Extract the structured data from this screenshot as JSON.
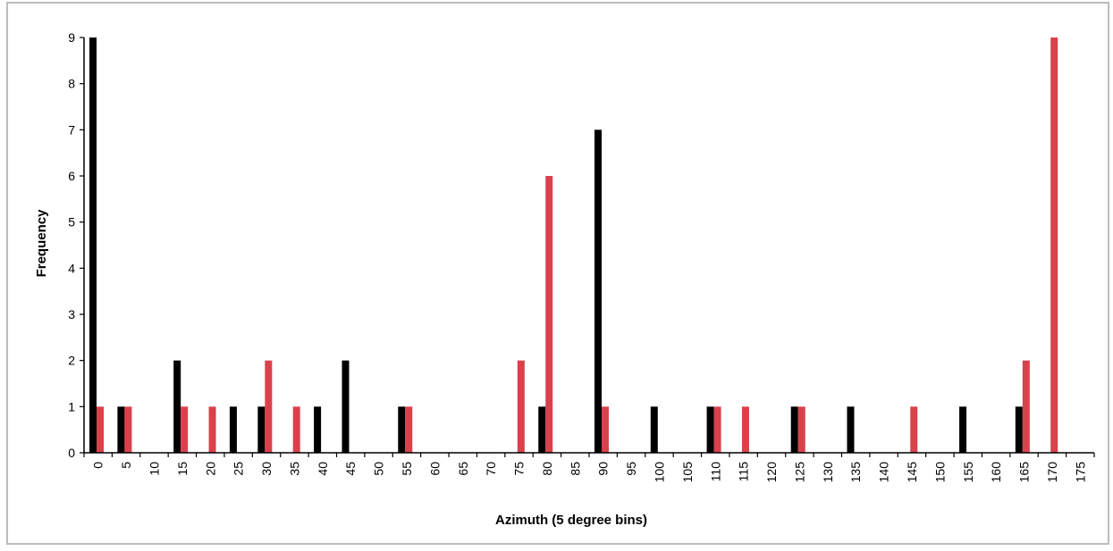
{
  "chart_data": {
    "type": "bar",
    "title": "",
    "xlabel": "Azimuth (5 degree bins)",
    "ylabel": "Frequency",
    "ylim": [
      0,
      9
    ],
    "yticks": [
      0,
      1,
      2,
      3,
      4,
      5,
      6,
      7,
      8,
      9
    ],
    "grid": false,
    "legend": "none",
    "categories": [
      "0",
      "5",
      "10",
      "15",
      "20",
      "25",
      "30",
      "35",
      "40",
      "45",
      "50",
      "55",
      "60",
      "65",
      "70",
      "75",
      "80",
      "85",
      "90",
      "95",
      "100",
      "105",
      "110",
      "115",
      "120",
      "125",
      "130",
      "135",
      "140",
      "145",
      "150",
      "155",
      "160",
      "165",
      "170",
      "175"
    ],
    "series": [
      {
        "color": "#000000",
        "values": [
          9,
          1,
          0,
          2,
          0,
          1,
          1,
          0,
          1,
          2,
          0,
          1,
          0,
          0,
          0,
          0,
          1,
          0,
          7,
          0,
          1,
          0,
          1,
          0,
          0,
          1,
          0,
          1,
          0,
          0,
          0,
          1,
          0,
          1,
          0,
          0
        ]
      },
      {
        "color": "#d9414b",
        "values": [
          1,
          1,
          0,
          1,
          1,
          0,
          2,
          1,
          0,
          0,
          0,
          1,
          0,
          0,
          0,
          2,
          6,
          0,
          1,
          0,
          0,
          0,
          1,
          1,
          0,
          1,
          0,
          0,
          0,
          1,
          0,
          0,
          0,
          2,
          9,
          0
        ]
      }
    ]
  }
}
